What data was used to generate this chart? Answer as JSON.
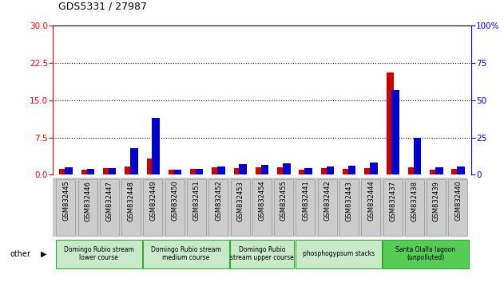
{
  "title": "GDS5331 / 27987",
  "samples": [
    "GSM832445",
    "GSM832446",
    "GSM832447",
    "GSM832448",
    "GSM832449",
    "GSM832450",
    "GSM832451",
    "GSM832452",
    "GSM832453",
    "GSM832454",
    "GSM832455",
    "GSM832441",
    "GSM832442",
    "GSM832443",
    "GSM832444",
    "GSM832437",
    "GSM832438",
    "GSM832439",
    "GSM832440"
  ],
  "count": [
    1.2,
    1.1,
    1.3,
    1.6,
    3.2,
    1.0,
    1.2,
    1.5,
    1.3,
    1.5,
    1.5,
    1.1,
    1.4,
    1.2,
    1.3,
    20.5,
    1.5,
    1.0,
    1.2
  ],
  "percentile": [
    5.0,
    4.0,
    4.5,
    18.0,
    38.0,
    3.5,
    4.0,
    5.5,
    7.0,
    6.5,
    7.5,
    4.5,
    5.5,
    6.0,
    8.0,
    57.0,
    25.0,
    5.0,
    5.5
  ],
  "groups": [
    {
      "label": "Domingo Rubio stream\nlower course",
      "start": 0,
      "end": 4,
      "color": "#c8eac9"
    },
    {
      "label": "Domingo Rubio stream\nmedium course",
      "start": 4,
      "end": 8,
      "color": "#c8eac9"
    },
    {
      "label": "Domingo Rubio\nstream upper course",
      "start": 8,
      "end": 11,
      "color": "#c8eac9"
    },
    {
      "label": "phosphogypsum stacks",
      "start": 11,
      "end": 15,
      "color": "#c8eac9"
    },
    {
      "label": "Santa Olalla lagoon\n(unpolluted)",
      "start": 15,
      "end": 19,
      "color": "#55cc55"
    }
  ],
  "ylim_left": [
    0,
    30
  ],
  "ylim_right": [
    0,
    100
  ],
  "yticks_left": [
    0,
    7.5,
    15,
    22.5,
    30
  ],
  "yticks_right": [
    0,
    25,
    50,
    75,
    100
  ],
  "bar_width": 0.35,
  "count_color": "#cc0000",
  "percentile_color": "#0000cc",
  "plot_bg": "#ffffff",
  "xticklabel_bg": "#cccccc"
}
